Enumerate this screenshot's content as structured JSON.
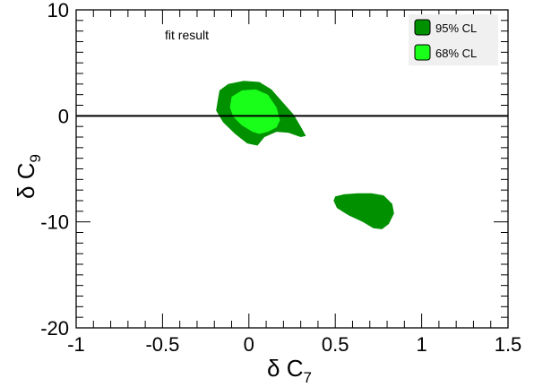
{
  "chart_data": {
    "type": "area",
    "title": "",
    "xlabel_symbol": "δ C",
    "xlabel_sub": "7",
    "ylabel_symbol": "δ C",
    "ylabel_sub": "9",
    "xlim": [
      -1,
      1.5
    ],
    "ylim": [
      -20,
      10
    ],
    "x_ticks": [
      "-1",
      "-0.5",
      "0",
      "0.5",
      "1",
      "1.5"
    ],
    "y_ticks": [
      "10",
      "0",
      "-10",
      "-20"
    ],
    "x_tick_values": [
      -1,
      -0.5,
      0,
      0.5,
      1,
      1.5
    ],
    "y_tick_values": [
      10,
      0,
      -10,
      -20
    ],
    "grid": false,
    "annotation": "fit result",
    "reference_line_y": 0,
    "legend_position": "top-right",
    "colors": {
      "cl95": "#009000",
      "cl68": "#19ff19",
      "axis": "#000000"
    },
    "series": [
      {
        "name": "95% CL",
        "regions": [
          [
            [
              -0.18,
              1.5
            ],
            [
              -0.17,
              2.4
            ],
            [
              -0.12,
              3.0
            ],
            [
              -0.03,
              3.3
            ],
            [
              0.06,
              3.2
            ],
            [
              0.13,
              2.5
            ],
            [
              0.2,
              1.2
            ],
            [
              0.26,
              0.1
            ],
            [
              0.3,
              -1.0
            ],
            [
              0.33,
              -1.9
            ],
            [
              0.3,
              -2.0
            ],
            [
              0.23,
              -1.6
            ],
            [
              0.16,
              -1.5
            ],
            [
              0.09,
              -2.0
            ],
            [
              0.05,
              -2.8
            ],
            [
              -0.01,
              -2.6
            ],
            [
              -0.08,
              -1.7
            ],
            [
              -0.15,
              -0.6
            ],
            [
              -0.19,
              0.5
            ]
          ],
          [
            [
              0.5,
              -7.6
            ],
            [
              0.55,
              -7.4
            ],
            [
              0.63,
              -7.3
            ],
            [
              0.71,
              -7.3
            ],
            [
              0.78,
              -7.5
            ],
            [
              0.83,
              -8.3
            ],
            [
              0.84,
              -9.2
            ],
            [
              0.81,
              -10.2
            ],
            [
              0.77,
              -10.7
            ],
            [
              0.72,
              -10.6
            ],
            [
              0.66,
              -10.0
            ],
            [
              0.58,
              -9.4
            ],
            [
              0.51,
              -8.7
            ],
            [
              0.49,
              -8.0
            ]
          ]
        ]
      },
      {
        "name": "68% CL",
        "regions": [
          [
            [
              -0.11,
              0.8
            ],
            [
              -0.1,
              1.8
            ],
            [
              -0.04,
              2.4
            ],
            [
              0.04,
              2.5
            ],
            [
              0.11,
              2.0
            ],
            [
              0.16,
              0.8
            ],
            [
              0.18,
              -0.4
            ],
            [
              0.16,
              -1.1
            ],
            [
              0.11,
              -1.5
            ],
            [
              0.06,
              -1.7
            ],
            [
              0.02,
              -1.5
            ],
            [
              -0.04,
              -0.9
            ],
            [
              -0.09,
              -0.1
            ]
          ]
        ]
      }
    ]
  }
}
